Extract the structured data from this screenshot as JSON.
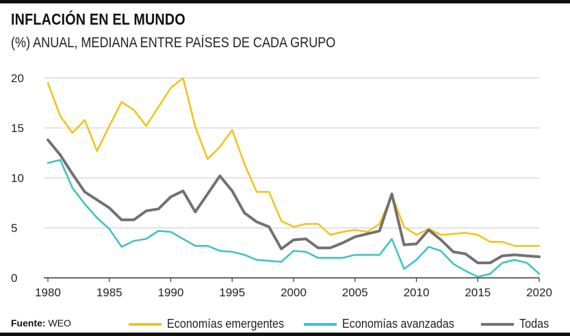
{
  "chart_data": {
    "type": "line",
    "title": "INFLACIÓN EN EL MUNDO",
    "subtitle": "(%) ANUAL, MEDIANA ENTRE PAÍSES DE CADA GRUPO",
    "xlabel": "",
    "ylabel": "",
    "x": [
      1980,
      1981,
      1982,
      1983,
      1984,
      1985,
      1986,
      1987,
      1988,
      1989,
      1990,
      1991,
      1992,
      1993,
      1994,
      1995,
      1996,
      1997,
      1998,
      1999,
      2000,
      2001,
      2002,
      2003,
      2004,
      2005,
      2006,
      2007,
      2008,
      2009,
      2010,
      2011,
      2012,
      2013,
      2014,
      2015,
      2016,
      2017,
      2018,
      2019,
      2020
    ],
    "xticks": [
      1980,
      1985,
      1990,
      1995,
      2000,
      2005,
      2010,
      2015,
      2020
    ],
    "yticks": [
      0,
      5,
      10,
      15,
      20
    ],
    "xlim": [
      1980,
      2020
    ],
    "ylim": [
      0,
      20
    ],
    "grid": true,
    "legend_position": "bottom",
    "series": [
      {
        "name": "Economías emergentes",
        "color": "#f2c418",
        "values": [
          19.5,
          16.2,
          14.5,
          15.8,
          12.7,
          15.2,
          17.6,
          16.8,
          15.2,
          17.1,
          19.0,
          20.0,
          15.1,
          11.9,
          13.1,
          14.8,
          11.4,
          8.6,
          8.6,
          5.7,
          5.1,
          5.4,
          5.4,
          4.3,
          4.6,
          4.8,
          4.6,
          5.4,
          8.3,
          5.1,
          4.3,
          4.9,
          4.3,
          4.4,
          4.5,
          4.3,
          3.6,
          3.6,
          3.2,
          3.2,
          3.2
        ]
      },
      {
        "name": "Economías avanzadas",
        "color": "#3fc3c4",
        "values": [
          11.5,
          11.8,
          9.0,
          7.4,
          6.0,
          4.9,
          3.1,
          3.7,
          3.9,
          4.7,
          4.6,
          3.9,
          3.2,
          3.2,
          2.7,
          2.6,
          2.3,
          1.8,
          1.7,
          1.6,
          2.7,
          2.6,
          2.0,
          2.0,
          2.0,
          2.3,
          2.3,
          2.3,
          3.9,
          0.9,
          1.8,
          3.1,
          2.7,
          1.4,
          0.7,
          0.1,
          0.4,
          1.5,
          1.8,
          1.5,
          0.4
        ]
      },
      {
        "name": "Todas",
        "color": "#717171",
        "values": [
          13.8,
          12.3,
          10.4,
          8.6,
          7.8,
          7.0,
          5.8,
          5.8,
          6.7,
          6.9,
          8.1,
          8.7,
          6.6,
          8.4,
          10.2,
          8.7,
          6.5,
          5.6,
          5.1,
          2.9,
          3.8,
          3.9,
          3.0,
          3.0,
          3.5,
          4.1,
          4.4,
          4.7,
          8.4,
          3.3,
          3.4,
          4.8,
          3.8,
          2.6,
          2.4,
          1.5,
          1.5,
          2.2,
          2.3,
          2.2,
          2.1
        ]
      }
    ]
  },
  "footer": {
    "source_label": "Fuente:",
    "source_value": "WEO"
  }
}
